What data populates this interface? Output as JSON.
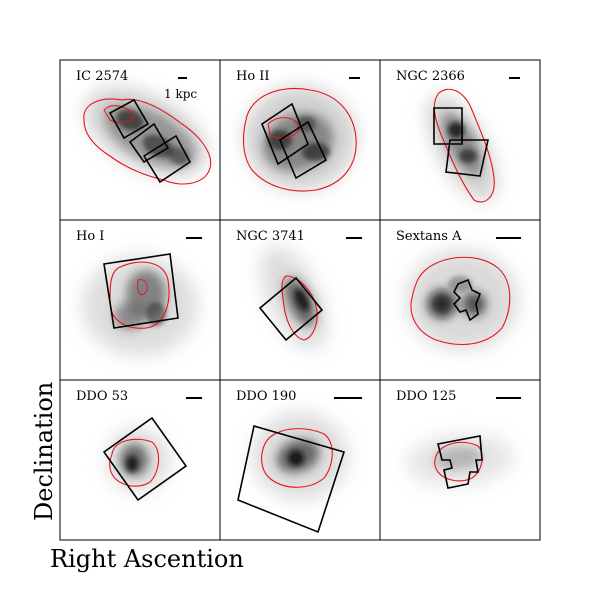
{
  "axes": {
    "xlabel": "Right Ascention",
    "ylabel": "Declination"
  },
  "scalebar_label": "1 kpc",
  "colors": {
    "contour": "#e8141c",
    "footprint": "#000000",
    "frame": "#000000",
    "emission_dark": "#111111"
  },
  "panels": [
    {
      "id": "ic2574",
      "name": "IC 2574",
      "shows_scalebar_label": true
    },
    {
      "id": "hoii",
      "name": "Ho II"
    },
    {
      "id": "ngc2366",
      "name": "NGC 2366"
    },
    {
      "id": "hoi",
      "name": "Ho I"
    },
    {
      "id": "ngc3741",
      "name": "NGC 3741"
    },
    {
      "id": "sextansa",
      "name": "Sextans A"
    },
    {
      "id": "ddo53",
      "name": "DDO 53"
    },
    {
      "id": "ddo190",
      "name": "DDO 190"
    },
    {
      "id": "ddo125",
      "name": "DDO 125"
    }
  ]
}
